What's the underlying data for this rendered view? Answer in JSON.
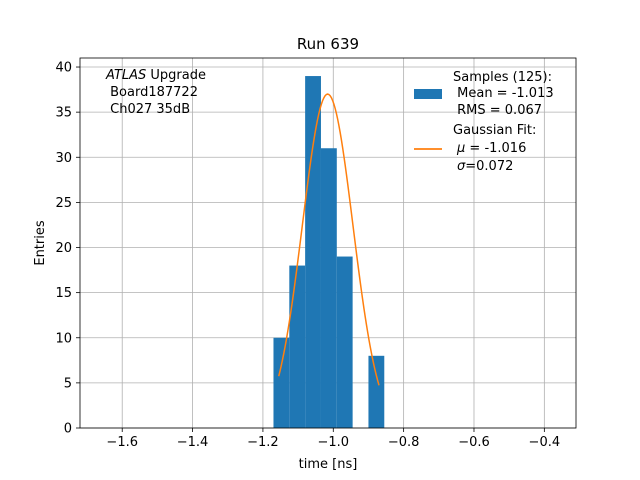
{
  "chart_data": {
    "type": "bar",
    "title": "Run 639",
    "xlabel": "time [ns]",
    "ylabel": "Entries",
    "xlim": [
      -1.72,
      -0.31
    ],
    "ylim": [
      0,
      41
    ],
    "grid": true,
    "x_ticks": [
      -1.6,
      -1.4,
      -1.2,
      -1.0,
      -0.8,
      -0.6,
      -0.4
    ],
    "x_tick_labels": [
      "−1.6",
      "−1.4",
      "−1.2",
      "−1.0",
      "−0.8",
      "−0.6",
      "−0.4"
    ],
    "y_ticks": [
      0,
      5,
      10,
      15,
      20,
      25,
      30,
      35,
      40
    ],
    "y_tick_labels": [
      "0",
      "5",
      "10",
      "15",
      "20",
      "25",
      "30",
      "35",
      "40"
    ],
    "histogram": {
      "name": "Samples (125):",
      "color": "#1f77b4",
      "bin_edges": [
        -1.17,
        -1.125,
        -1.08,
        -1.035,
        -0.99,
        -0.945,
        -0.9,
        -0.855
      ],
      "counts": [
        10,
        18,
        39,
        31,
        19,
        0,
        8
      ]
    },
    "fit": {
      "name": "Gaussian Fit:",
      "color": "#ff7f0e",
      "mu": -1.016,
      "sigma": 0.072,
      "amplitude": 37,
      "x_range": [
        -1.155,
        -0.87
      ]
    },
    "legend_location": "top-right",
    "legend_lines": {
      "samples_title": "Samples (125):",
      "samples_mean": " Mean = -1.013",
      "samples_rms": " RMS = 0.067",
      "fit_title": "Gaussian Fit:",
      "fit_mu_symbol": "μ",
      "fit_mu_value": " = -1.016",
      "fit_sigma_symbol": "σ",
      "fit_sigma_value": "=0.072"
    },
    "annotation": {
      "atlas": "ATLAS",
      "upgrade": " Upgrade",
      "board": " Board187722",
      "channel": " Ch027 35dB"
    }
  }
}
